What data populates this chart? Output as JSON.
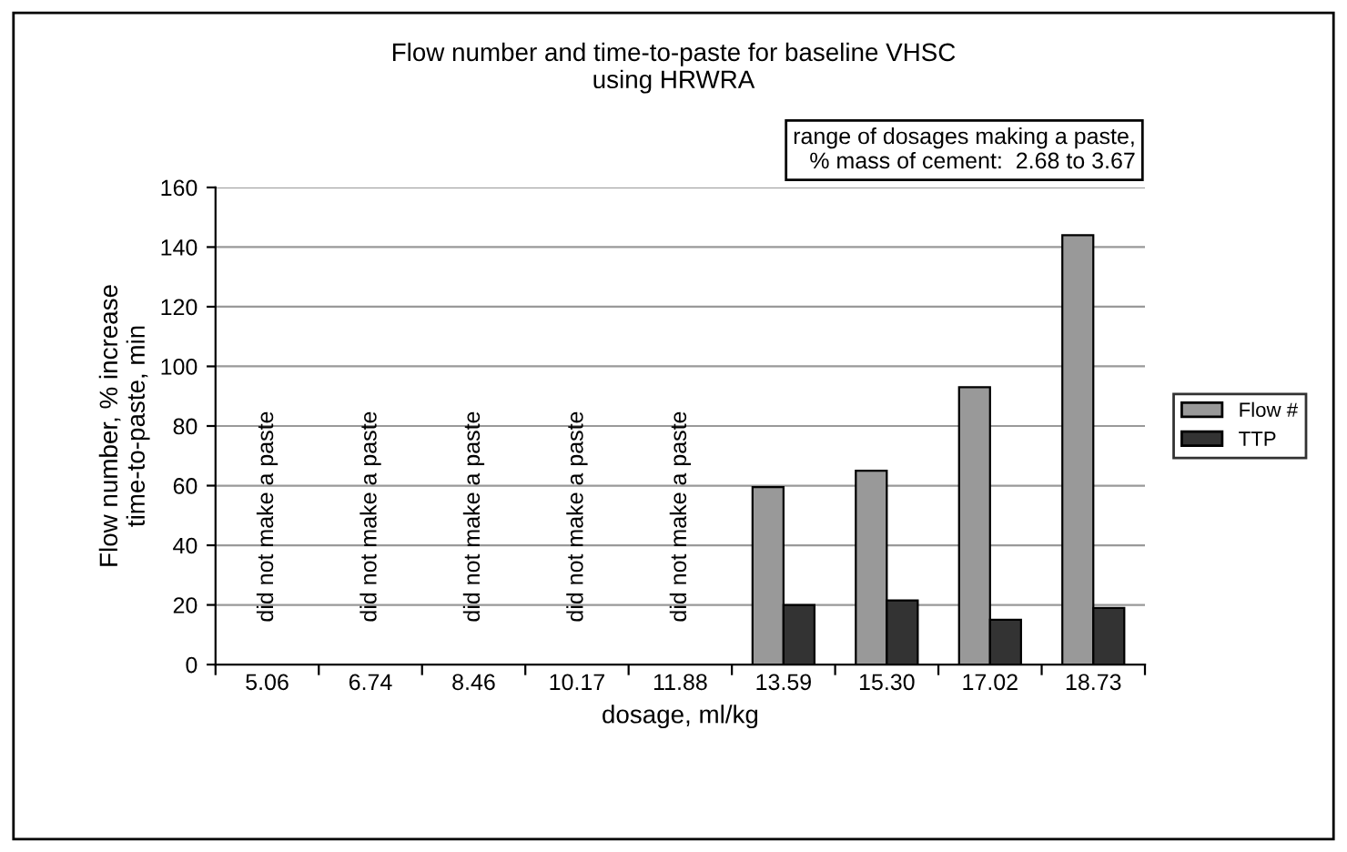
{
  "chart_data": {
    "type": "bar",
    "title": "Flow number and time-to-paste for baseline VHSC\nusing HRWRA",
    "xlabel": "dosage, ml/kg",
    "ylabel": "Flow number, % increase\ntime-to-paste, min",
    "categories": [
      "5.06",
      "6.74",
      "8.46",
      "10.17",
      "11.88",
      "13.59",
      "15.30",
      "17.02",
      "18.73"
    ],
    "series": [
      {
        "name": "Flow #",
        "color": "#999999",
        "values": [
          null,
          null,
          null,
          null,
          null,
          59.5,
          65,
          93,
          144
        ]
      },
      {
        "name": "TTP",
        "color": "#333333",
        "values": [
          null,
          null,
          null,
          null,
          null,
          20,
          21.5,
          15,
          19
        ]
      }
    ],
    "ylim": [
      0,
      160
    ],
    "yticks": [
      0,
      20,
      40,
      60,
      80,
      100,
      120,
      140,
      160
    ],
    "grid": "y",
    "legend": "right",
    "annotations": [
      "did not make a paste",
      "did not make a paste",
      "did not make a paste",
      "did not make a paste",
      "did not make a paste",
      "range of dosages making a paste,\n% mass of cement:  2.68 to 3.67"
    ]
  }
}
